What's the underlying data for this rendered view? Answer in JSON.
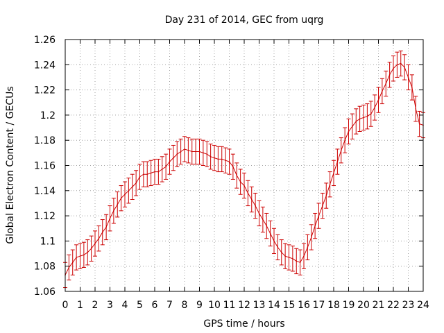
{
  "chart_data": {
    "type": "line",
    "title": "Day 231 of 2014, GEC from uqrg",
    "xlabel": "GPS time / hours",
    "ylabel": "Global Electron Content / GECUs",
    "xlim": [
      0,
      24
    ],
    "ylim": [
      1.06,
      1.26
    ],
    "xticks": [
      "0",
      "1",
      "2",
      "3",
      "4",
      "5",
      "6",
      "7",
      "8",
      "9",
      "10",
      "11",
      "12",
      "13",
      "14",
      "15",
      "16",
      "17",
      "18",
      "19",
      "20",
      "21",
      "22",
      "23",
      "24"
    ],
    "yticks": [
      "1.06",
      "1.08",
      "1.1",
      "1.12",
      "1.14",
      "1.16",
      "1.18",
      "1.2",
      "1.22",
      "1.24",
      "1.26"
    ],
    "grid": true,
    "series_color": "#cc0000",
    "series": [
      {
        "x": [
          0,
          0.25,
          0.5,
          0.75,
          1,
          1.25,
          1.5,
          1.75,
          2,
          2.25,
          2.5,
          2.75,
          3,
          3.25,
          3.5,
          3.75,
          4,
          4.25,
          4.5,
          4.75,
          5,
          5.25,
          5.5,
          5.75,
          6,
          6.25,
          6.5,
          6.75,
          7,
          7.25,
          7.5,
          7.75,
          8,
          8.25,
          8.5,
          8.75,
          9,
          9.25,
          9.5,
          9.75,
          10,
          10.25,
          10.5,
          10.75,
          11,
          11.25,
          11.5,
          11.75,
          12,
          12.25,
          12.5,
          12.75,
          13,
          13.25,
          13.5,
          13.75,
          14,
          14.25,
          14.5,
          14.75,
          15,
          15.25,
          15.5,
          15.75,
          16,
          16.25,
          16.5,
          16.75,
          17,
          17.25,
          17.5,
          17.75,
          18,
          18.25,
          18.5,
          18.75,
          19,
          19.25,
          19.5,
          19.75,
          20,
          20.25,
          20.5,
          20.75,
          21,
          21.25,
          21.5,
          21.75,
          22,
          22.25,
          22.5,
          22.75,
          23,
          23.25,
          23.5,
          23.75,
          24
        ],
        "values": [
          1.073,
          1.079,
          1.083,
          1.087,
          1.088,
          1.089,
          1.091,
          1.094,
          1.098,
          1.102,
          1.107,
          1.111,
          1.118,
          1.124,
          1.129,
          1.134,
          1.137,
          1.14,
          1.143,
          1.146,
          1.151,
          1.153,
          1.153,
          1.154,
          1.155,
          1.155,
          1.157,
          1.159,
          1.163,
          1.166,
          1.169,
          1.171,
          1.173,
          1.172,
          1.171,
          1.171,
          1.171,
          1.17,
          1.169,
          1.167,
          1.166,
          1.165,
          1.165,
          1.164,
          1.163,
          1.159,
          1.152,
          1.147,
          1.144,
          1.138,
          1.133,
          1.128,
          1.122,
          1.117,
          1.112,
          1.106,
          1.1,
          1.095,
          1.091,
          1.088,
          1.087,
          1.086,
          1.084,
          1.083,
          1.088,
          1.095,
          1.103,
          1.112,
          1.12,
          1.128,
          1.136,
          1.145,
          1.154,
          1.163,
          1.172,
          1.18,
          1.187,
          1.191,
          1.195,
          1.197,
          1.198,
          1.199,
          1.201,
          1.206,
          1.212,
          1.219,
          1.225,
          1.232,
          1.237,
          1.24,
          1.241,
          1.238,
          1.23,
          1.222,
          1.205,
          1.193,
          1.192
        ],
        "error": 0.01
      }
    ]
  }
}
